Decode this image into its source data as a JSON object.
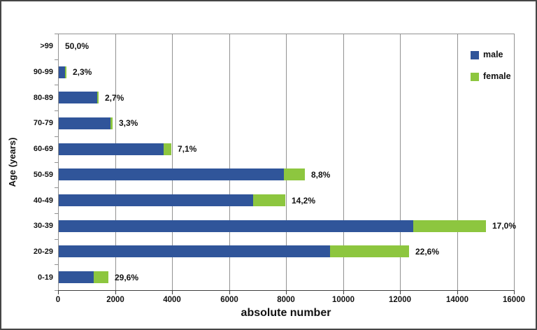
{
  "chart_data": {
    "type": "bar",
    "orientation": "horizontal",
    "stacked": true,
    "title": "",
    "xlabel": "absolute number",
    "ylabel": "Age (years)",
    "xlim": [
      0,
      16000
    ],
    "xticks": [
      0,
      2000,
      4000,
      6000,
      8000,
      10000,
      12000,
      14000,
      16000
    ],
    "grid": "vertical",
    "legend_position": "top-right-inside",
    "categories": [
      ">99",
      "90-99",
      "80-89",
      "70-79",
      "60-69",
      "50-59",
      "40-49",
      "30-39",
      "20-29",
      "0-19"
    ],
    "series": [
      {
        "name": "male",
        "color": "#30559A",
        "values": [
          1,
          215,
          1343,
          1820,
          3670,
          7890,
          6820,
          12450,
          9520,
          1230
        ]
      },
      {
        "name": "female",
        "color": "#8DC63F",
        "values": [
          1,
          5,
          37,
          62,
          280,
          760,
          1130,
          2550,
          2780,
          520
        ]
      }
    ],
    "bar_labels": [
      "50,0%",
      "2,3%",
      "2,7%",
      "3,3%",
      "7,1%",
      "8,8%",
      "14,2%",
      "17,0%",
      "22,6%",
      "29,6%"
    ],
    "colors": {
      "male": "#30559A",
      "female": "#8DC63F",
      "gridline": "#919191",
      "axis_line": "#3F3F3F",
      "frame_border": "#464646",
      "text": "#111111"
    }
  },
  "legend": {
    "items": [
      {
        "label": "male",
        "color": "#30559A"
      },
      {
        "label": "female",
        "color": "#8DC63F"
      }
    ]
  }
}
